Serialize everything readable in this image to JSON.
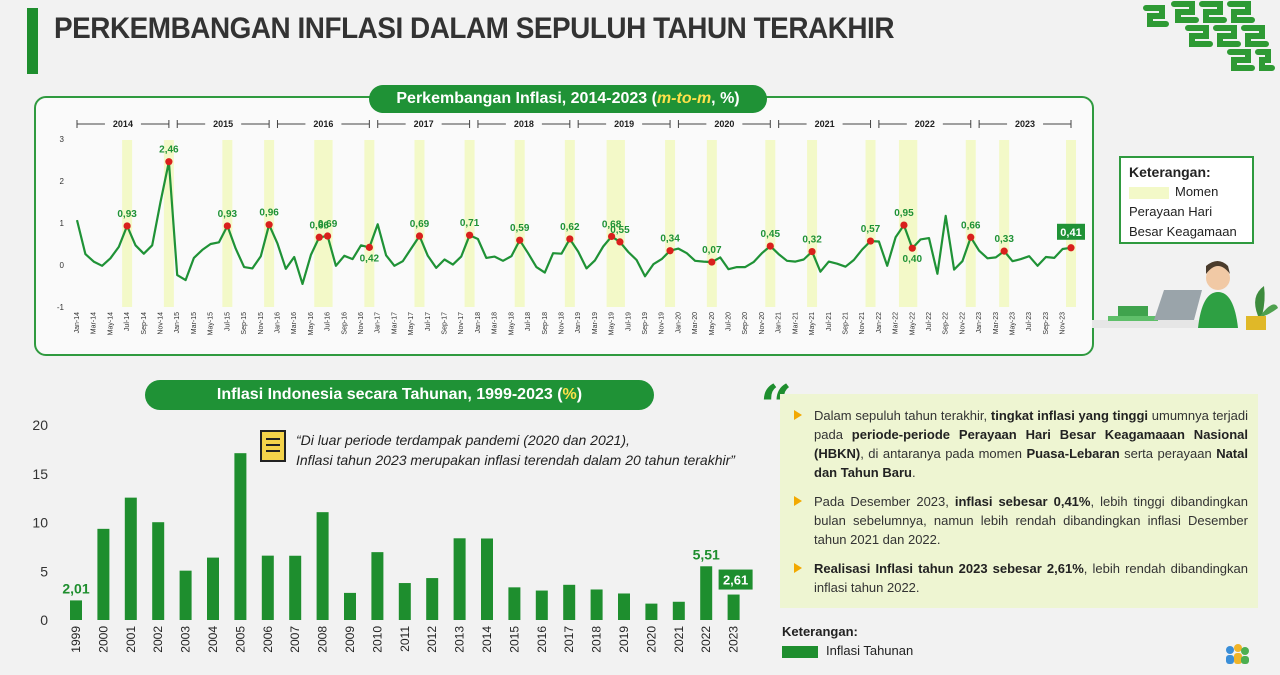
{
  "header": {
    "title": "PERKEMBANGAN INFLASI DALAM SEPULUH TAHUN TERAKHIR"
  },
  "colors": {
    "brand_green": "#1e8e2e",
    "line_green": "#1f9236",
    "highlight_band": "#f3f9c8",
    "marker_red": "#d9201c",
    "accent_yellow": "#ffe14a",
    "bullet_orange": "#f2a900",
    "panel_bg": "#eef5d2"
  },
  "monthly_panel": {
    "title_main": "Perkembangan Inflasi, 2014-2023 (",
    "title_italic": "m-to-m",
    "title_tail": ", %)",
    "legend": {
      "title": "Keterangan:",
      "item_label_line1": "Momen",
      "item_label_line2": "Perayaan Hari",
      "item_label_line3": "Besar Keagamaan"
    }
  },
  "annual_panel": {
    "title_main": "Inflasi Indonesia secara Tahunan, 1999-2023 (",
    "title_unit": "%",
    "title_tail": ")",
    "note_line1": "“Di luar periode terdampak pandemi (2020 dan 2021),",
    "note_line2": "Inflasi tahun 2023 merupakan inflasi terendah dalam 20 tahun terakhir”",
    "legend": {
      "title": "Keterangan:",
      "item": "Inflasi Tahunan"
    }
  },
  "commentary": {
    "quote_glyph": "“",
    "p1_a": "Dalam sepuluh tahun terakhir, ",
    "p1_b": "tingkat inflasi yang tinggi",
    "p1_c": " umumnya terjadi pada ",
    "p1_d": "periode-periode Perayaan Hari Besar Keagamaaan Nasional (HBKN)",
    "p1_e": ", di antaranya pada momen ",
    "p1_f": "Puasa-Lebaran",
    "p1_g": " serta perayaan ",
    "p1_h": "Natal dan Tahun Baru",
    "p1_i": ".",
    "p2_a": "Pada Desember 2023, ",
    "p2_b": "inflasi sebesar 0,41%",
    "p2_c": ", lebih tinggi dibandingkan bulan sebelumnya, namun lebih rendah dibandingkan inflasi Desember tahun 2021 dan 2022.",
    "p3_a": "Realisasi Inflasi tahun 2023 sebesar 2,61%",
    "p3_b": ", lebih rendah dibandingkan inflasi tahun 2022."
  },
  "chart_data": [
    {
      "type": "line",
      "title": "Perkembangan Inflasi, 2014-2023 (m-to-m, %)",
      "ylim": [
        -1,
        3
      ],
      "yticks": [
        "3",
        "2",
        "1",
        "0",
        "-1"
      ],
      "year_labels": [
        "2014",
        "2015",
        "2016",
        "2017",
        "2018",
        "2019",
        "2020",
        "2021",
        "2022",
        "2023"
      ],
      "x": [
        "Jan-14",
        "Feb-14",
        "Mar-14",
        "Apr-14",
        "May-14",
        "Jun-14",
        "Jul-14",
        "Aug-14",
        "Sep-14",
        "Oct-14",
        "Nov-14",
        "Dec-14",
        "Jan-15",
        "Feb-15",
        "Mar-15",
        "Apr-15",
        "May-15",
        "Jun-15",
        "Jul-15",
        "Aug-15",
        "Sep-15",
        "Oct-15",
        "Nov-15",
        "Dec-15",
        "Jan-16",
        "Feb-16",
        "Mar-16",
        "Apr-16",
        "May-16",
        "Jun-16",
        "Jul-16",
        "Aug-16",
        "Sep-16",
        "Oct-16",
        "Nov-16",
        "Dec-16",
        "Jan-17",
        "Feb-17",
        "Mar-17",
        "Apr-17",
        "May-17",
        "Jun-17",
        "Jul-17",
        "Aug-17",
        "Sep-17",
        "Oct-17",
        "Nov-17",
        "Dec-17",
        "Jan-18",
        "Feb-18",
        "Mar-18",
        "Apr-18",
        "May-18",
        "Jun-18",
        "Jul-18",
        "Aug-18",
        "Sep-18",
        "Oct-18",
        "Nov-18",
        "Dec-18",
        "Jan-19",
        "Feb-19",
        "Mar-19",
        "Apr-19",
        "May-19",
        "Jun-19",
        "Jul-19",
        "Aug-19",
        "Sep-19",
        "Oct-19",
        "Nov-19",
        "Dec-19",
        "Jan-20",
        "Feb-20",
        "Mar-20",
        "Apr-20",
        "May-20",
        "Jun-20",
        "Jul-20",
        "Aug-20",
        "Sep-20",
        "Oct-20",
        "Nov-20",
        "Dec-20",
        "Jan-21",
        "Feb-21",
        "Mar-21",
        "Apr-21",
        "May-21",
        "Jun-21",
        "Jul-21",
        "Aug-21",
        "Sep-21",
        "Oct-21",
        "Nov-21",
        "Dec-21",
        "Jan-22",
        "Feb-22",
        "Mar-22",
        "Apr-22",
        "May-22",
        "Jun-22",
        "Jul-22",
        "Aug-22",
        "Sep-22",
        "Oct-22",
        "Nov-22",
        "Dec-22",
        "Jan-23",
        "Feb-23",
        "Mar-23",
        "Apr-23",
        "May-23",
        "Jun-23",
        "Jul-23",
        "Aug-23",
        "Sep-23",
        "Oct-23",
        "Nov-23",
        "Dec-23"
      ],
      "xtick_labels": [
        "Jan-14",
        "Mar-14",
        "May-14",
        "Jul-14",
        "Sep-14",
        "Nov-14",
        "Jan-15",
        "Mar-15",
        "May-15",
        "Jul-15",
        "Sep-15",
        "Nov-15",
        "Jan-16",
        "Mar-16",
        "May-16",
        "Jul-16",
        "Sep-16",
        "Nov-16",
        "Jan-17",
        "Mar-17",
        "May-17",
        "Jul-17",
        "Sep-17",
        "Nov-17",
        "Jan-18",
        "Mar-18",
        "May-18",
        "Jul-18",
        "Sep-18",
        "Nov-18",
        "Jan-19",
        "Mar-19",
        "May-19",
        "Jul-19",
        "Sep-19",
        "Nov-19",
        "Jan-20",
        "Mar-20",
        "May-20",
        "Jul-20",
        "Sep-20",
        "Nov-20",
        "Jan-21",
        "Mar-21",
        "May-21",
        "Jul-21",
        "Sep-21",
        "Nov-21",
        "Jan-22",
        "Mar-22",
        "May-22",
        "Jul-22",
        "Sep-22",
        "Nov-22",
        "Jan-23",
        "Mar-23",
        "May-23",
        "Jul-23",
        "Sep-23",
        "Nov-23"
      ],
      "series": [
        {
          "values": [
            1.07,
            0.26,
            0.08,
            -0.02,
            0.16,
            0.43,
            0.93,
            0.47,
            0.27,
            0.47,
            1.5,
            2.46,
            -0.24,
            -0.36,
            0.17,
            0.36,
            0.5,
            0.54,
            0.93,
            0.39,
            -0.05,
            -0.08,
            0.21,
            0.96,
            0.51,
            -0.09,
            0.19,
            -0.45,
            0.24,
            0.66,
            0.69,
            -0.02,
            0.22,
            0.14,
            0.47,
            0.42,
            0.97,
            0.23,
            -0.02,
            0.09,
            0.39,
            0.69,
            0.22,
            -0.07,
            0.13,
            0.01,
            0.2,
            0.71,
            0.62,
            0.17,
            0.2,
            0.1,
            0.21,
            0.59,
            0.28,
            -0.05,
            -0.18,
            0.28,
            0.27,
            0.62,
            0.32,
            -0.08,
            0.11,
            0.44,
            0.68,
            0.55,
            0.31,
            0.12,
            -0.27,
            0.02,
            0.14,
            0.34,
            0.39,
            0.28,
            0.1,
            0.08,
            0.07,
            0.18,
            -0.1,
            -0.05,
            -0.05,
            0.07,
            0.28,
            0.45,
            0.26,
            0.1,
            0.08,
            0.13,
            0.32,
            -0.16,
            0.08,
            0.03,
            -0.04,
            0.12,
            0.37,
            0.57,
            0.56,
            -0.02,
            0.66,
            0.95,
            0.4,
            0.61,
            0.64,
            -0.21,
            1.17,
            -0.11,
            0.09,
            0.66,
            0.34,
            0.16,
            0.18,
            0.33,
            0.09,
            0.14,
            0.21,
            -0.02,
            0.19,
            0.17,
            0.38,
            0.41
          ]
        }
      ],
      "holiday_months": [
        "Jul-14",
        "Dec-14",
        "Jul-15",
        "Dec-15",
        "Jun-16",
        "Jul-16",
        "Dec-16",
        "Jun-17",
        "Dec-17",
        "Jun-18",
        "Dec-18",
        "May-19",
        "Jun-19",
        "Dec-19",
        "May-20",
        "Dec-20",
        "May-21",
        "Dec-21",
        "Apr-22",
        "May-22",
        "Dec-22",
        "Apr-23",
        "Dec-23"
      ],
      "annotations": [
        {
          "month": "Jul-14",
          "label": "0,93"
        },
        {
          "month": "Dec-14",
          "label": "2,46"
        },
        {
          "month": "Jul-15",
          "label": "0,93"
        },
        {
          "month": "Dec-15",
          "label": "0,96"
        },
        {
          "month": "Jun-16",
          "label": "0,66"
        },
        {
          "month": "Jul-16",
          "label": "0,69"
        },
        {
          "month": "Dec-16",
          "label": "0,42"
        },
        {
          "month": "Jun-17",
          "label": "0,69"
        },
        {
          "month": "Dec-17",
          "label": "0,71"
        },
        {
          "month": "Jun-18",
          "label": "0,59"
        },
        {
          "month": "Dec-18",
          "label": "0,62"
        },
        {
          "month": "May-19",
          "label": "0,68"
        },
        {
          "month": "Jun-19",
          "label": "0,55"
        },
        {
          "month": "Dec-19",
          "label": "0,34"
        },
        {
          "month": "May-20",
          "label": "0,07"
        },
        {
          "month": "Dec-20",
          "label": "0,45"
        },
        {
          "month": "May-21",
          "label": "0,32"
        },
        {
          "month": "Dec-21",
          "label": "0,57"
        },
        {
          "month": "Apr-22",
          "label": "0,95"
        },
        {
          "month": "May-22",
          "label": "0,40"
        },
        {
          "month": "Dec-22",
          "label": "0,66"
        },
        {
          "month": "Apr-23",
          "label": "0,33"
        },
        {
          "month": "Dec-23",
          "label": "0,41",
          "boxed": true
        }
      ]
    },
    {
      "type": "bar",
      "title": "Inflasi Indonesia secara Tahunan, 1999-2023 (%)",
      "ylim": [
        0,
        20
      ],
      "yticks": [
        "20",
        "15",
        "10",
        "5",
        "0"
      ],
      "categories": [
        "1999",
        "2000",
        "2001",
        "2002",
        "2003",
        "2004",
        "2005",
        "2006",
        "2007",
        "2008",
        "2009",
        "2010",
        "2011",
        "2012",
        "2013",
        "2014",
        "2015",
        "2016",
        "2017",
        "2018",
        "2019",
        "2020",
        "2021",
        "2022",
        "2023"
      ],
      "series": [
        {
          "name": "Inflasi Tahunan",
          "values": [
            2.01,
            9.35,
            12.55,
            10.03,
            5.06,
            6.4,
            17.11,
            6.6,
            6.59,
            11.06,
            2.78,
            6.96,
            3.79,
            4.3,
            8.38,
            8.36,
            3.35,
            3.02,
            3.61,
            3.13,
            2.72,
            1.68,
            1.87,
            5.51,
            2.61
          ]
        }
      ],
      "data_labels": [
        {
          "category": "1999",
          "label": "2,01"
        },
        {
          "category": "2022",
          "label": "5,51"
        },
        {
          "category": "2023",
          "label": "2,61",
          "boxed": true
        }
      ]
    }
  ]
}
